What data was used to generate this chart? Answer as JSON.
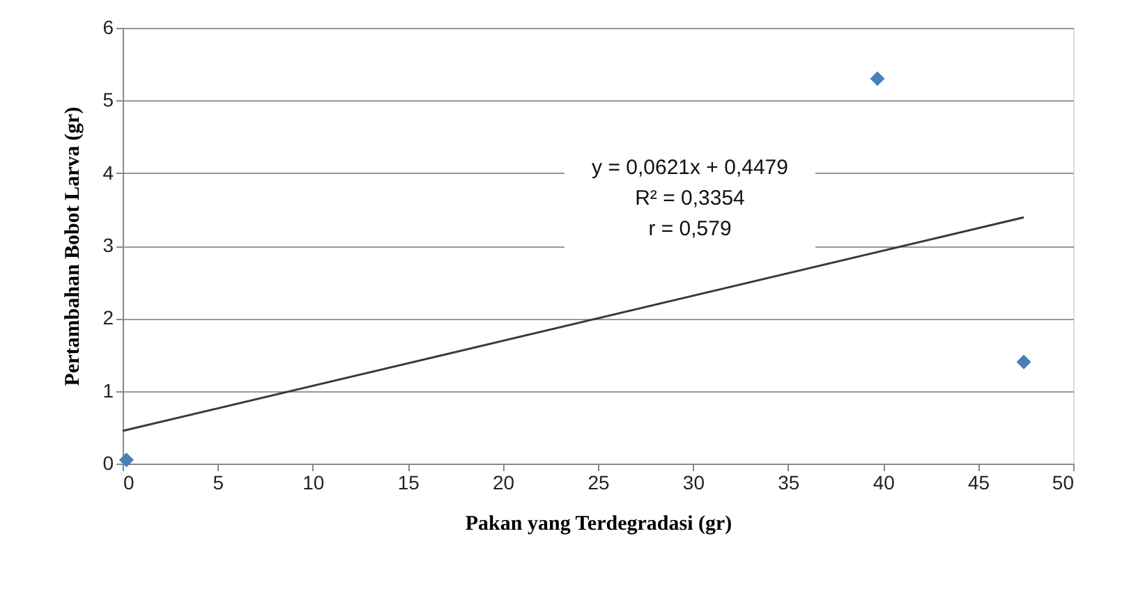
{
  "chart_data": {
    "type": "scatter",
    "xlabel": "Pakan yang Terdegradasi (gr)",
    "ylabel": "Pertambahan Bobot Larva (gr)",
    "annotations": [
      "y = 0,0621x + 0,4479",
      "R² = 0,3354",
      "r = 0,579"
    ],
    "series": [
      {
        "color": "#4a7ebb",
        "marker": "diamond",
        "x": [
          0.2,
          39.7,
          47.4
        ],
        "values": [
          0.05,
          5.3,
          1.4
        ]
      },
      {
        "type": "line",
        "color": "#3a3a3a",
        "marker": "none",
        "line_style": "solid",
        "x": [
          0,
          47.4
        ],
        "values": [
          0.45,
          3.39
        ]
      }
    ],
    "xlim": [
      0,
      50
    ],
    "xticks": [
      0,
      5,
      10,
      15,
      20,
      25,
      30,
      35,
      40,
      45,
      50
    ],
    "ylim": [
      0,
      6
    ],
    "yticks": [
      0,
      1,
      2,
      3,
      4,
      5,
      6
    ],
    "grid": "y"
  }
}
